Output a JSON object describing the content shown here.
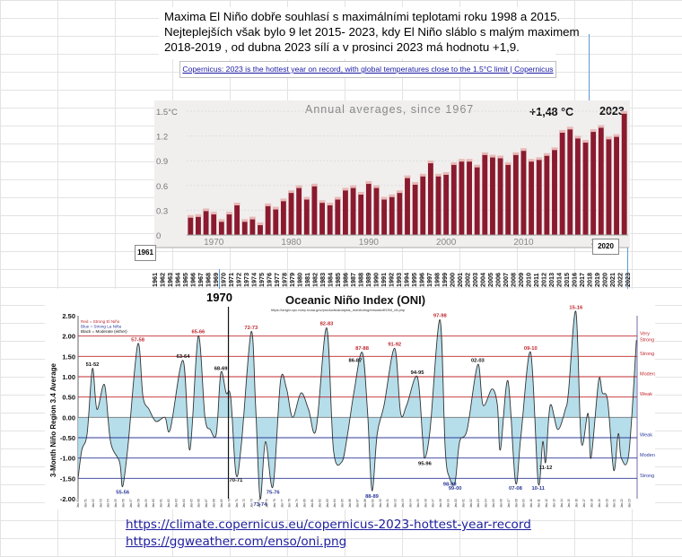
{
  "note": {
    "line1": "Maxima El Niño dobře souhlasí s maximálními teplotami roku 1998 a  2015.",
    "line2": "Nejteplejších však bylo  9 let 2015- 2023, kdy El Niño sláblo s malým maximem",
    "line3": "2018-2019 , od dubna 2023  sílí a v prosinci 2023 má hodnotu +1,9."
  },
  "copernicus_link": "Copernicus: 2023 is the hottest year on record, with global temperatures close to the 1.5°C limit | Copernicus",
  "year_markers": {
    "start": "1961",
    "box2020": "2020"
  },
  "chart_data": [
    {
      "type": "bar",
      "title": "Annual averages, since 1967",
      "annotation_value": "+1,48 °C",
      "annotation_year": "2023",
      "x": [
        1967,
        1968,
        1969,
        1970,
        1971,
        1972,
        1973,
        1974,
        1975,
        1976,
        1977,
        1978,
        1979,
        1980,
        1981,
        1982,
        1983,
        1984,
        1985,
        1986,
        1987,
        1988,
        1989,
        1990,
        1991,
        1992,
        1993,
        1994,
        1995,
        1996,
        1997,
        1998,
        1999,
        2000,
        2001,
        2002,
        2003,
        2004,
        2005,
        2006,
        2007,
        2008,
        2009,
        2010,
        2011,
        2012,
        2013,
        2014,
        2015,
        2016,
        2017,
        2018,
        2019,
        2020,
        2021,
        2022,
        2023
      ],
      "values": [
        0.22,
        0.23,
        0.3,
        0.26,
        0.17,
        0.26,
        0.37,
        0.17,
        0.2,
        0.13,
        0.36,
        0.32,
        0.42,
        0.52,
        0.58,
        0.44,
        0.6,
        0.4,
        0.37,
        0.44,
        0.55,
        0.58,
        0.5,
        0.63,
        0.58,
        0.44,
        0.47,
        0.52,
        0.7,
        0.62,
        0.72,
        0.88,
        0.72,
        0.74,
        0.86,
        0.9,
        0.9,
        0.83,
        0.98,
        0.95,
        0.94,
        0.86,
        0.98,
        1.03,
        0.9,
        0.92,
        0.97,
        1.04,
        1.25,
        1.29,
        1.18,
        1.13,
        1.26,
        1.31,
        1.17,
        1.2,
        1.48
      ],
      "ytick_labels": [
        "0",
        "0.3",
        "0.6",
        "0.9",
        "1.2",
        "1.5°C"
      ],
      "ytick_values": [
        0,
        0.3,
        0.6,
        0.9,
        1.2,
        1.5
      ],
      "ylim": [
        0,
        1.5
      ],
      "xtick_labels": [
        "1970",
        "1980",
        "1990",
        "2000",
        "2010",
        "2020"
      ],
      "xtick_values": [
        1970,
        1980,
        1990,
        2000,
        2010,
        2020
      ],
      "year_axis_labels": [
        "1961",
        "1962",
        "1963",
        "1964",
        "1965",
        "1966",
        "1967",
        "1968",
        "1969",
        "1970",
        "1971",
        "1972",
        "1973",
        "1974",
        "1975",
        "1976",
        "1977",
        "1978",
        "1979",
        "1980",
        "1981",
        "1982",
        "1983",
        "1984",
        "1985",
        "1986",
        "1987",
        "1988",
        "1989",
        "1990",
        "1991",
        "1992",
        "1993",
        "1994",
        "1995",
        "1996",
        "1997",
        "1998",
        "1999",
        "2000",
        "2001",
        "2002",
        "2003",
        "2004",
        "2005",
        "2006",
        "2007",
        "2008",
        "2009",
        "2010",
        "2011",
        "2012",
        "2013",
        "2014",
        "2015",
        "2016",
        "2017",
        "2018",
        "2019",
        "2020",
        "2021",
        "2022",
        "2023"
      ],
      "colors": {
        "bar": "#8b1a2e",
        "background": "#f1eeee"
      }
    },
    {
      "type": "line",
      "title": "Oceanic Niño Index (ONI)",
      "subtitle": "https://origin.cpc.ncep.noaa.gov/products/analysis_monitoring/ensostuff/ONI_v5.php",
      "marker_label": "1970",
      "ylabel": "3-Month Niño Region 3.4 Average",
      "ylim": [
        -2.0,
        2.5
      ],
      "ytick_labels": [
        "2.50",
        "2.00",
        "1.50",
        "1.00",
        "0.50",
        "0.00",
        "-0.50",
        "-1.00",
        "-1.50",
        "-2.00"
      ],
      "ytick_values": [
        2.5,
        2.0,
        1.5,
        1.0,
        0.5,
        0.0,
        -0.5,
        -1.0,
        -1.5,
        -2.0
      ],
      "xlim": [
        1950,
        2024
      ],
      "legend": [
        "Red = Strong  El Niño",
        "Blue = Strong  La Niña",
        "Black = Moderate  (either)"
      ],
      "threshold_labels": [
        "Very Strong",
        "Strong",
        "Moderate",
        "Weak",
        "Weak",
        "Moderate",
        "Strong"
      ],
      "threshold_values": [
        2.0,
        1.5,
        1.0,
        0.5,
        -0.5,
        -1.0,
        -1.5
      ],
      "series_points": [
        [
          1950,
          -1.5
        ],
        [
          1950.5,
          -0.8
        ],
        [
          1951.2,
          -0.4
        ],
        [
          1951.9,
          1.2
        ],
        [
          1952.5,
          0.2
        ],
        [
          1953.5,
          0.8
        ],
        [
          1954.3,
          -0.6
        ],
        [
          1955.5,
          -1.1
        ],
        [
          1955.9,
          -1.7
        ],
        [
          1956.6,
          -0.7
        ],
        [
          1957.9,
          1.8
        ],
        [
          1958.6,
          0.5
        ],
        [
          1959.4,
          0.2
        ],
        [
          1960.3,
          -0.1
        ],
        [
          1961.5,
          0.0
        ],
        [
          1962.2,
          -0.3
        ],
        [
          1963.9,
          1.4
        ],
        [
          1964.8,
          -0.8
        ],
        [
          1965.9,
          2.0
        ],
        [
          1966.8,
          0.0
        ],
        [
          1967.5,
          -0.3
        ],
        [
          1968.3,
          -0.4
        ],
        [
          1968.9,
          1.1
        ],
        [
          1969.6,
          0.6
        ],
        [
          1970.2,
          0.5
        ],
        [
          1970.9,
          -1.4
        ],
        [
          1971.6,
          -0.7
        ],
        [
          1972.9,
          2.1
        ],
        [
          1973.5,
          0.3
        ],
        [
          1974.1,
          -2.0
        ],
        [
          1974.8,
          -0.6
        ],
        [
          1975.8,
          -1.7
        ],
        [
          1976.8,
          0.9
        ],
        [
          1977.6,
          0.7
        ],
        [
          1978.4,
          0.0
        ],
        [
          1979.5,
          0.6
        ],
        [
          1980.5,
          0.2
        ],
        [
          1981.5,
          -0.3
        ],
        [
          1982.9,
          2.2
        ],
        [
          1983.8,
          -0.8
        ],
        [
          1984.9,
          -1.1
        ],
        [
          1985.6,
          -0.5
        ],
        [
          1986.5,
          0.6
        ],
        [
          1987.6,
          1.6
        ],
        [
          1988.3,
          0.2
        ],
        [
          1988.9,
          -1.8
        ],
        [
          1989.6,
          -0.4
        ],
        [
          1990.5,
          0.3
        ],
        [
          1991.9,
          1.7
        ],
        [
          1992.7,
          0.1
        ],
        [
          1993.5,
          0.3
        ],
        [
          1994.9,
          1.0
        ],
        [
          1995.6,
          -0.5
        ],
        [
          1995.9,
          -1.0
        ],
        [
          1996.6,
          -0.3
        ],
        [
          1997.9,
          2.4
        ],
        [
          1998.6,
          -0.8
        ],
        [
          1999.2,
          -1.5
        ],
        [
          1999.9,
          -1.6
        ],
        [
          2000.5,
          -0.6
        ],
        [
          2001.5,
          -0.3
        ],
        [
          2002.9,
          1.3
        ],
        [
          2003.6,
          0.3
        ],
        [
          2004.8,
          0.7
        ],
        [
          2005.5,
          0.3
        ],
        [
          2005.9,
          -0.8
        ],
        [
          2006.9,
          0.9
        ],
        [
          2007.9,
          -1.6
        ],
        [
          2008.6,
          -0.5
        ],
        [
          2009.9,
          1.6
        ],
        [
          2010.9,
          -1.6
        ],
        [
          2011.5,
          -0.6
        ],
        [
          2011.9,
          -1.1
        ],
        [
          2012.5,
          0.3
        ],
        [
          2013.5,
          -0.3
        ],
        [
          2014.5,
          0.2
        ],
        [
          2014.9,
          0.6
        ],
        [
          2015.9,
          2.6
        ],
        [
          2016.6,
          -0.6
        ],
        [
          2017.5,
          0.1
        ],
        [
          2017.9,
          -1.0
        ],
        [
          2018.9,
          0.9
        ],
        [
          2019.4,
          0.6
        ],
        [
          2020.1,
          0.4
        ],
        [
          2020.9,
          -1.3
        ],
        [
          2021.5,
          -0.4
        ],
        [
          2021.9,
          -1.0
        ],
        [
          2022.9,
          -0.9
        ],
        [
          2023.9,
          1.9
        ]
      ],
      "event_labels": [
        {
          "text": "51-52",
          "x": 1951.9,
          "y": 1.2
        },
        {
          "text": "57-58",
          "x": 1957.9,
          "y": 1.8
        },
        {
          "text": "63-64",
          "x": 1963.9,
          "y": 1.4
        },
        {
          "text": "65-66",
          "x": 1965.9,
          "y": 2.0
        },
        {
          "text": "68-69",
          "x": 1968.9,
          "y": 1.1
        },
        {
          "text": "72-73",
          "x": 1972.9,
          "y": 2.1
        },
        {
          "text": "82-83",
          "x": 1982.9,
          "y": 2.2
        },
        {
          "text": "86-87",
          "x": 1986.7,
          "y": 1.3
        },
        {
          "text": "87-88",
          "x": 1987.6,
          "y": 1.6
        },
        {
          "text": "91-92",
          "x": 1991.9,
          "y": 1.7
        },
        {
          "text": "94-95",
          "x": 1994.9,
          "y": 1.0
        },
        {
          "text": "97-98",
          "x": 1997.9,
          "y": 2.4
        },
        {
          "text": "02-03",
          "x": 2002.9,
          "y": 1.3
        },
        {
          "text": "09-10",
          "x": 2009.9,
          "y": 1.6
        },
        {
          "text": "15-16",
          "x": 2015.9,
          "y": 2.6
        },
        {
          "text": "55-56",
          "x": 1955.9,
          "y": -1.7
        },
        {
          "text": "70-71",
          "x": 1970.9,
          "y": -1.4
        },
        {
          "text": "73-74",
          "x": 1974.1,
          "y": -2.0
        },
        {
          "text": "75-76",
          "x": 1975.8,
          "y": -1.7
        },
        {
          "text": "88-89",
          "x": 1988.9,
          "y": -1.8
        },
        {
          "text": "95-96",
          "x": 1995.9,
          "y": -1.0
        },
        {
          "text": "98-99",
          "x": 1999.2,
          "y": -1.5
        },
        {
          "text": "99-00",
          "x": 1999.9,
          "y": -1.6
        },
        {
          "text": "07-08",
          "x": 2007.9,
          "y": -1.6
        },
        {
          "text": "10-11",
          "x": 2010.9,
          "y": -1.6
        },
        {
          "text": "11-12",
          "x": 2011.9,
          "y": -1.1
        }
      ],
      "colors": {
        "line": "#333333",
        "fill": "#a8d8e6",
        "el_nino": "#c0282f",
        "la_nina": "#2b3a9a"
      }
    }
  ],
  "links": {
    "line1": "https://climate.copernicus.eu/copernicus-2023-hottest-year-record",
    "line2": "https://ggweather.com/enso/oni.png"
  }
}
